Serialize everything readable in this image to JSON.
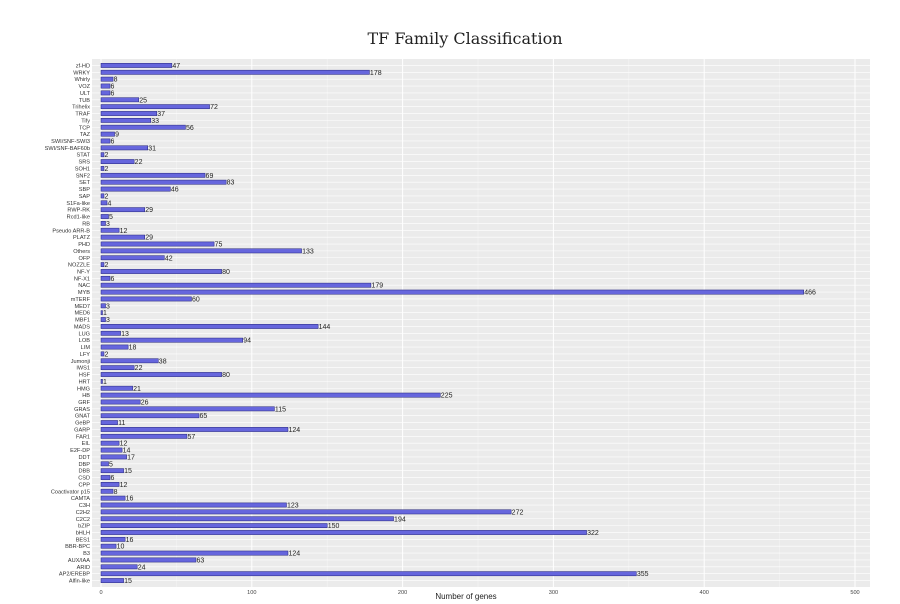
{
  "chart_data": {
    "type": "bar",
    "orientation": "horizontal",
    "title": "TF Family Classification",
    "xlabel": "Number of genes",
    "ylabel": "",
    "xlim": [
      0,
      500
    ],
    "xticks": [
      0,
      100,
      200,
      300,
      400,
      500
    ],
    "grid": true,
    "bar_color": "#6666dd",
    "bar_border": "#22227a",
    "panel_color": "#ebebeb",
    "categories": [
      "zf-HD",
      "WRKY",
      "Whirly",
      "VOZ",
      "ULT",
      "TUB",
      "Trihelix",
      "TRAF",
      "Tify",
      "TCP",
      "TAZ",
      "SWI/SNF-SWI3",
      "SWI/SNF-BAF60b",
      "STAT",
      "SRS",
      "SOH1",
      "SNF2",
      "SET",
      "SBP",
      "SAP",
      "S1Fa-like",
      "RWP-RK",
      "Rcd1-like",
      "RB",
      "Pseudo ARR-B",
      "PLATZ",
      "PHD",
      "Others",
      "OFP",
      "NOZZLE",
      "NF-Y",
      "NF-X1",
      "NAC",
      "MYB",
      "mTERF",
      "MED7",
      "MED6",
      "MBF1",
      "MADS",
      "LUG",
      "LOB",
      "LIM",
      "LFY",
      "Jumonji",
      "IWS1",
      "HSF",
      "HRT",
      "HMG",
      "HB",
      "GRF",
      "GRAS",
      "GNAT",
      "GeBP",
      "GARP",
      "FAR1",
      "EIL",
      "E2F-DP",
      "DDT",
      "DBP",
      "DBB",
      "CSD",
      "CPP",
      "Coactivator p15",
      "CAMTA",
      "C3H",
      "C2H2",
      "C2C2",
      "bZIP",
      "bHLH",
      "BES1",
      "BBR-BPC",
      "B3",
      "AUX/IAA",
      "ARID",
      "AP2/EREBP",
      "Alfin-like"
    ],
    "values": [
      47,
      178,
      8,
      6,
      6,
      25,
      72,
      37,
      33,
      56,
      9,
      6,
      31,
      2,
      22,
      2,
      69,
      83,
      46,
      2,
      4,
      29,
      5,
      3,
      12,
      29,
      75,
      133,
      42,
      2,
      80,
      6,
      179,
      466,
      60,
      3,
      1,
      3,
      144,
      13,
      94,
      18,
      2,
      38,
      22,
      80,
      1,
      21,
      225,
      26,
      115,
      65,
      11,
      124,
      57,
      12,
      14,
      17,
      5,
      15,
      6,
      12,
      8,
      16,
      123,
      272,
      194,
      150,
      322,
      16,
      10,
      124,
      63,
      24,
      355,
      15
    ]
  }
}
